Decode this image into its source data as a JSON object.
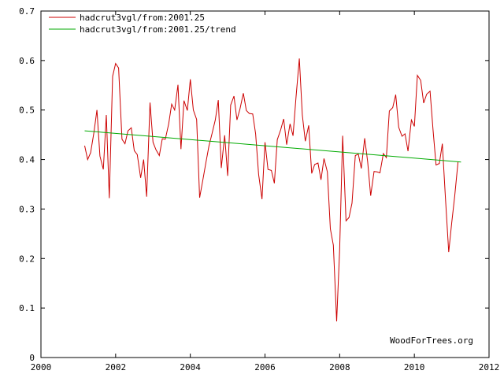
{
  "chart_data": {
    "type": "line",
    "title": "",
    "xlabel": "",
    "ylabel": "",
    "xlim": [
      2000,
      2012
    ],
    "ylim": [
      0,
      0.7
    ],
    "x_ticks": [
      2000,
      2002,
      2004,
      2006,
      2008,
      2010,
      2012
    ],
    "x_tick_labels": [
      "2000",
      "2002",
      "2004",
      "2006",
      "2008",
      "2010",
      "2012"
    ],
    "y_ticks": [
      0,
      0.1,
      0.2,
      0.3,
      0.4,
      0.5,
      0.6,
      0.7
    ],
    "y_tick_labels": [
      "0",
      "0.1",
      "0.2",
      "0.3",
      "0.4",
      "0.5",
      "0.6",
      "0.7"
    ],
    "grid": false,
    "legend_position": "top-left",
    "annotation": "WoodForTrees.org",
    "series": [
      {
        "name": "hadcrut3vgl/from:2001.25",
        "color": "#cc0000",
        "x": [
          2001.17,
          2001.25,
          2001.33,
          2001.42,
          2001.5,
          2001.58,
          2001.67,
          2001.75,
          2001.83,
          2001.92,
          2002.0,
          2002.08,
          2002.17,
          2002.25,
          2002.33,
          2002.42,
          2002.5,
          2002.58,
          2002.67,
          2002.75,
          2002.83,
          2002.92,
          2003.0,
          2003.08,
          2003.17,
          2003.25,
          2003.33,
          2003.42,
          2003.5,
          2003.58,
          2003.67,
          2003.75,
          2003.83,
          2003.92,
          2004.0,
          2004.08,
          2004.17,
          2004.25,
          2004.33,
          2004.42,
          2004.5,
          2004.58,
          2004.67,
          2004.75,
          2004.83,
          2004.92,
          2005.0,
          2005.08,
          2005.17,
          2005.25,
          2005.33,
          2005.42,
          2005.5,
          2005.58,
          2005.67,
          2005.75,
          2005.83,
          2005.92,
          2006.0,
          2006.08,
          2006.17,
          2006.25,
          2006.33,
          2006.42,
          2006.5,
          2006.58,
          2006.67,
          2006.75,
          2006.83,
          2006.92,
          2007.0,
          2007.08,
          2007.17,
          2007.25,
          2007.33,
          2007.42,
          2007.5,
          2007.58,
          2007.67,
          2007.75,
          2007.83,
          2007.92,
          2008.0,
          2008.08,
          2008.17,
          2008.25,
          2008.33,
          2008.42,
          2008.5,
          2008.58,
          2008.67,
          2008.75,
          2008.83,
          2008.92,
          2009.0,
          2009.08,
          2009.17,
          2009.25,
          2009.33,
          2009.42,
          2009.5,
          2009.58,
          2009.67,
          2009.75,
          2009.83,
          2009.92,
          2010.0,
          2010.08,
          2010.17,
          2010.25,
          2010.33,
          2010.42,
          2010.5,
          2010.58,
          2010.67,
          2010.75,
          2010.83,
          2010.92,
          2011.0,
          2011.08,
          2011.17
        ],
        "values": [
          0.428,
          0.4,
          0.414,
          0.455,
          0.5,
          0.407,
          0.38,
          0.49,
          0.322,
          0.568,
          0.594,
          0.585,
          0.441,
          0.432,
          0.458,
          0.464,
          0.418,
          0.41,
          0.363,
          0.4,
          0.325,
          0.515,
          0.435,
          0.42,
          0.408,
          0.442,
          0.441,
          0.472,
          0.512,
          0.5,
          0.551,
          0.421,
          0.519,
          0.499,
          0.562,
          0.5,
          0.481,
          0.323,
          0.356,
          0.395,
          0.428,
          0.452,
          0.48,
          0.52,
          0.383,
          0.449,
          0.367,
          0.51,
          0.528,
          0.48,
          0.502,
          0.534,
          0.499,
          0.493,
          0.492,
          0.452,
          0.37,
          0.32,
          0.435,
          0.38,
          0.378,
          0.352,
          0.44,
          0.46,
          0.482,
          0.43,
          0.472,
          0.448,
          0.526,
          0.604,
          0.49,
          0.437,
          0.469,
          0.372,
          0.39,
          0.393,
          0.359,
          0.402,
          0.375,
          0.26,
          0.227,
          0.073,
          0.218,
          0.448,
          0.276,
          0.283,
          0.312,
          0.408,
          0.411,
          0.382,
          0.443,
          0.395,
          0.327,
          0.376,
          0.375,
          0.373,
          0.412,
          0.404,
          0.498,
          0.505,
          0.531,
          0.465,
          0.447,
          0.452,
          0.417,
          0.48,
          0.467,
          0.57,
          0.56,
          0.514,
          0.532,
          0.538,
          0.46,
          0.389,
          0.392,
          0.432,
          0.326,
          0.213,
          0.272,
          0.326,
          0.395
        ]
      },
      {
        "name": "hadcrut3vgl/from:2001.25/trend",
        "color": "#00aa00",
        "x": [
          2001.17,
          2011.25
        ],
        "values": [
          0.458,
          0.395
        ]
      }
    ]
  }
}
